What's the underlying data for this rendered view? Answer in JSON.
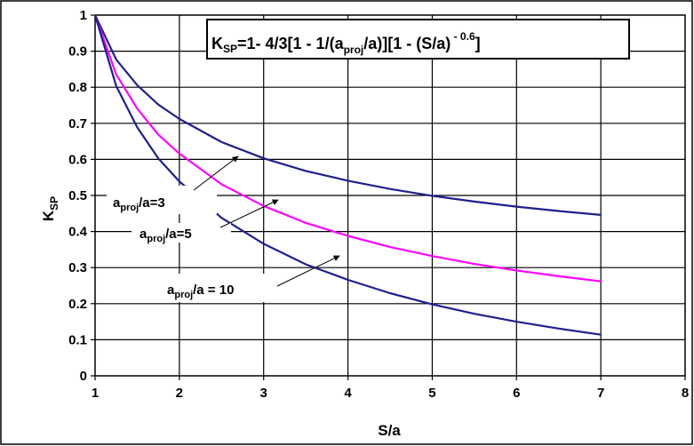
{
  "chart_data": {
    "type": "line",
    "formula": {
      "lhs_main": "K",
      "lhs_sub": "SP",
      "part1": "=1- 4/3[1 - 1/(a",
      "part1_sub": "proj",
      "part2": "/a)][1 - (S/a)",
      "exponent": " - 0.6",
      "part3": "]"
    },
    "xlabel": "S/a",
    "ylabel_main": "K",
    "ylabel_sub": "SP",
    "xlim": [
      1,
      8
    ],
    "ylim": [
      0,
      1
    ],
    "x_ticks": [
      "1",
      "2",
      "3",
      "4",
      "5",
      "6",
      "7",
      "8"
    ],
    "y_ticks": [
      "0",
      "0.1",
      "0.2",
      "0.3",
      "0.4",
      "0.5",
      "0.6",
      "0.7",
      "0.8",
      "0.9",
      "1"
    ],
    "grid": true,
    "x": [
      1,
      1.25,
      1.5,
      1.75,
      2,
      2.5,
      3,
      3.5,
      4,
      4.5,
      5,
      5.5,
      6,
      6.5,
      7
    ],
    "series": [
      {
        "color": "#1f1f8f",
        "values": [
          1.0,
          0.877,
          0.806,
          0.752,
          0.712,
          0.648,
          0.603,
          0.568,
          0.541,
          0.518,
          0.499,
          0.483,
          0.469,
          0.457,
          0.446
        ],
        "label": {
          "pre": "a",
          "sub": "proj",
          "post": "/a=3"
        }
      },
      {
        "color": "#ff00ff",
        "values": [
          1.0,
          0.836,
          0.741,
          0.669,
          0.616,
          0.531,
          0.471,
          0.424,
          0.388,
          0.357,
          0.332,
          0.31,
          0.292,
          0.276,
          0.262
        ],
        "label": {
          "pre": "a",
          "sub": "proj",
          "post": "/a=5"
        }
      },
      {
        "color": "#1f1f8f",
        "values": [
          1.0,
          0.804,
          0.689,
          0.603,
          0.539,
          0.438,
          0.366,
          0.309,
          0.266,
          0.229,
          0.198,
          0.172,
          0.15,
          0.131,
          0.114
        ],
        "label": {
          "pre": "a",
          "sub": "proj",
          "post": "/a = 10"
        }
      }
    ]
  }
}
